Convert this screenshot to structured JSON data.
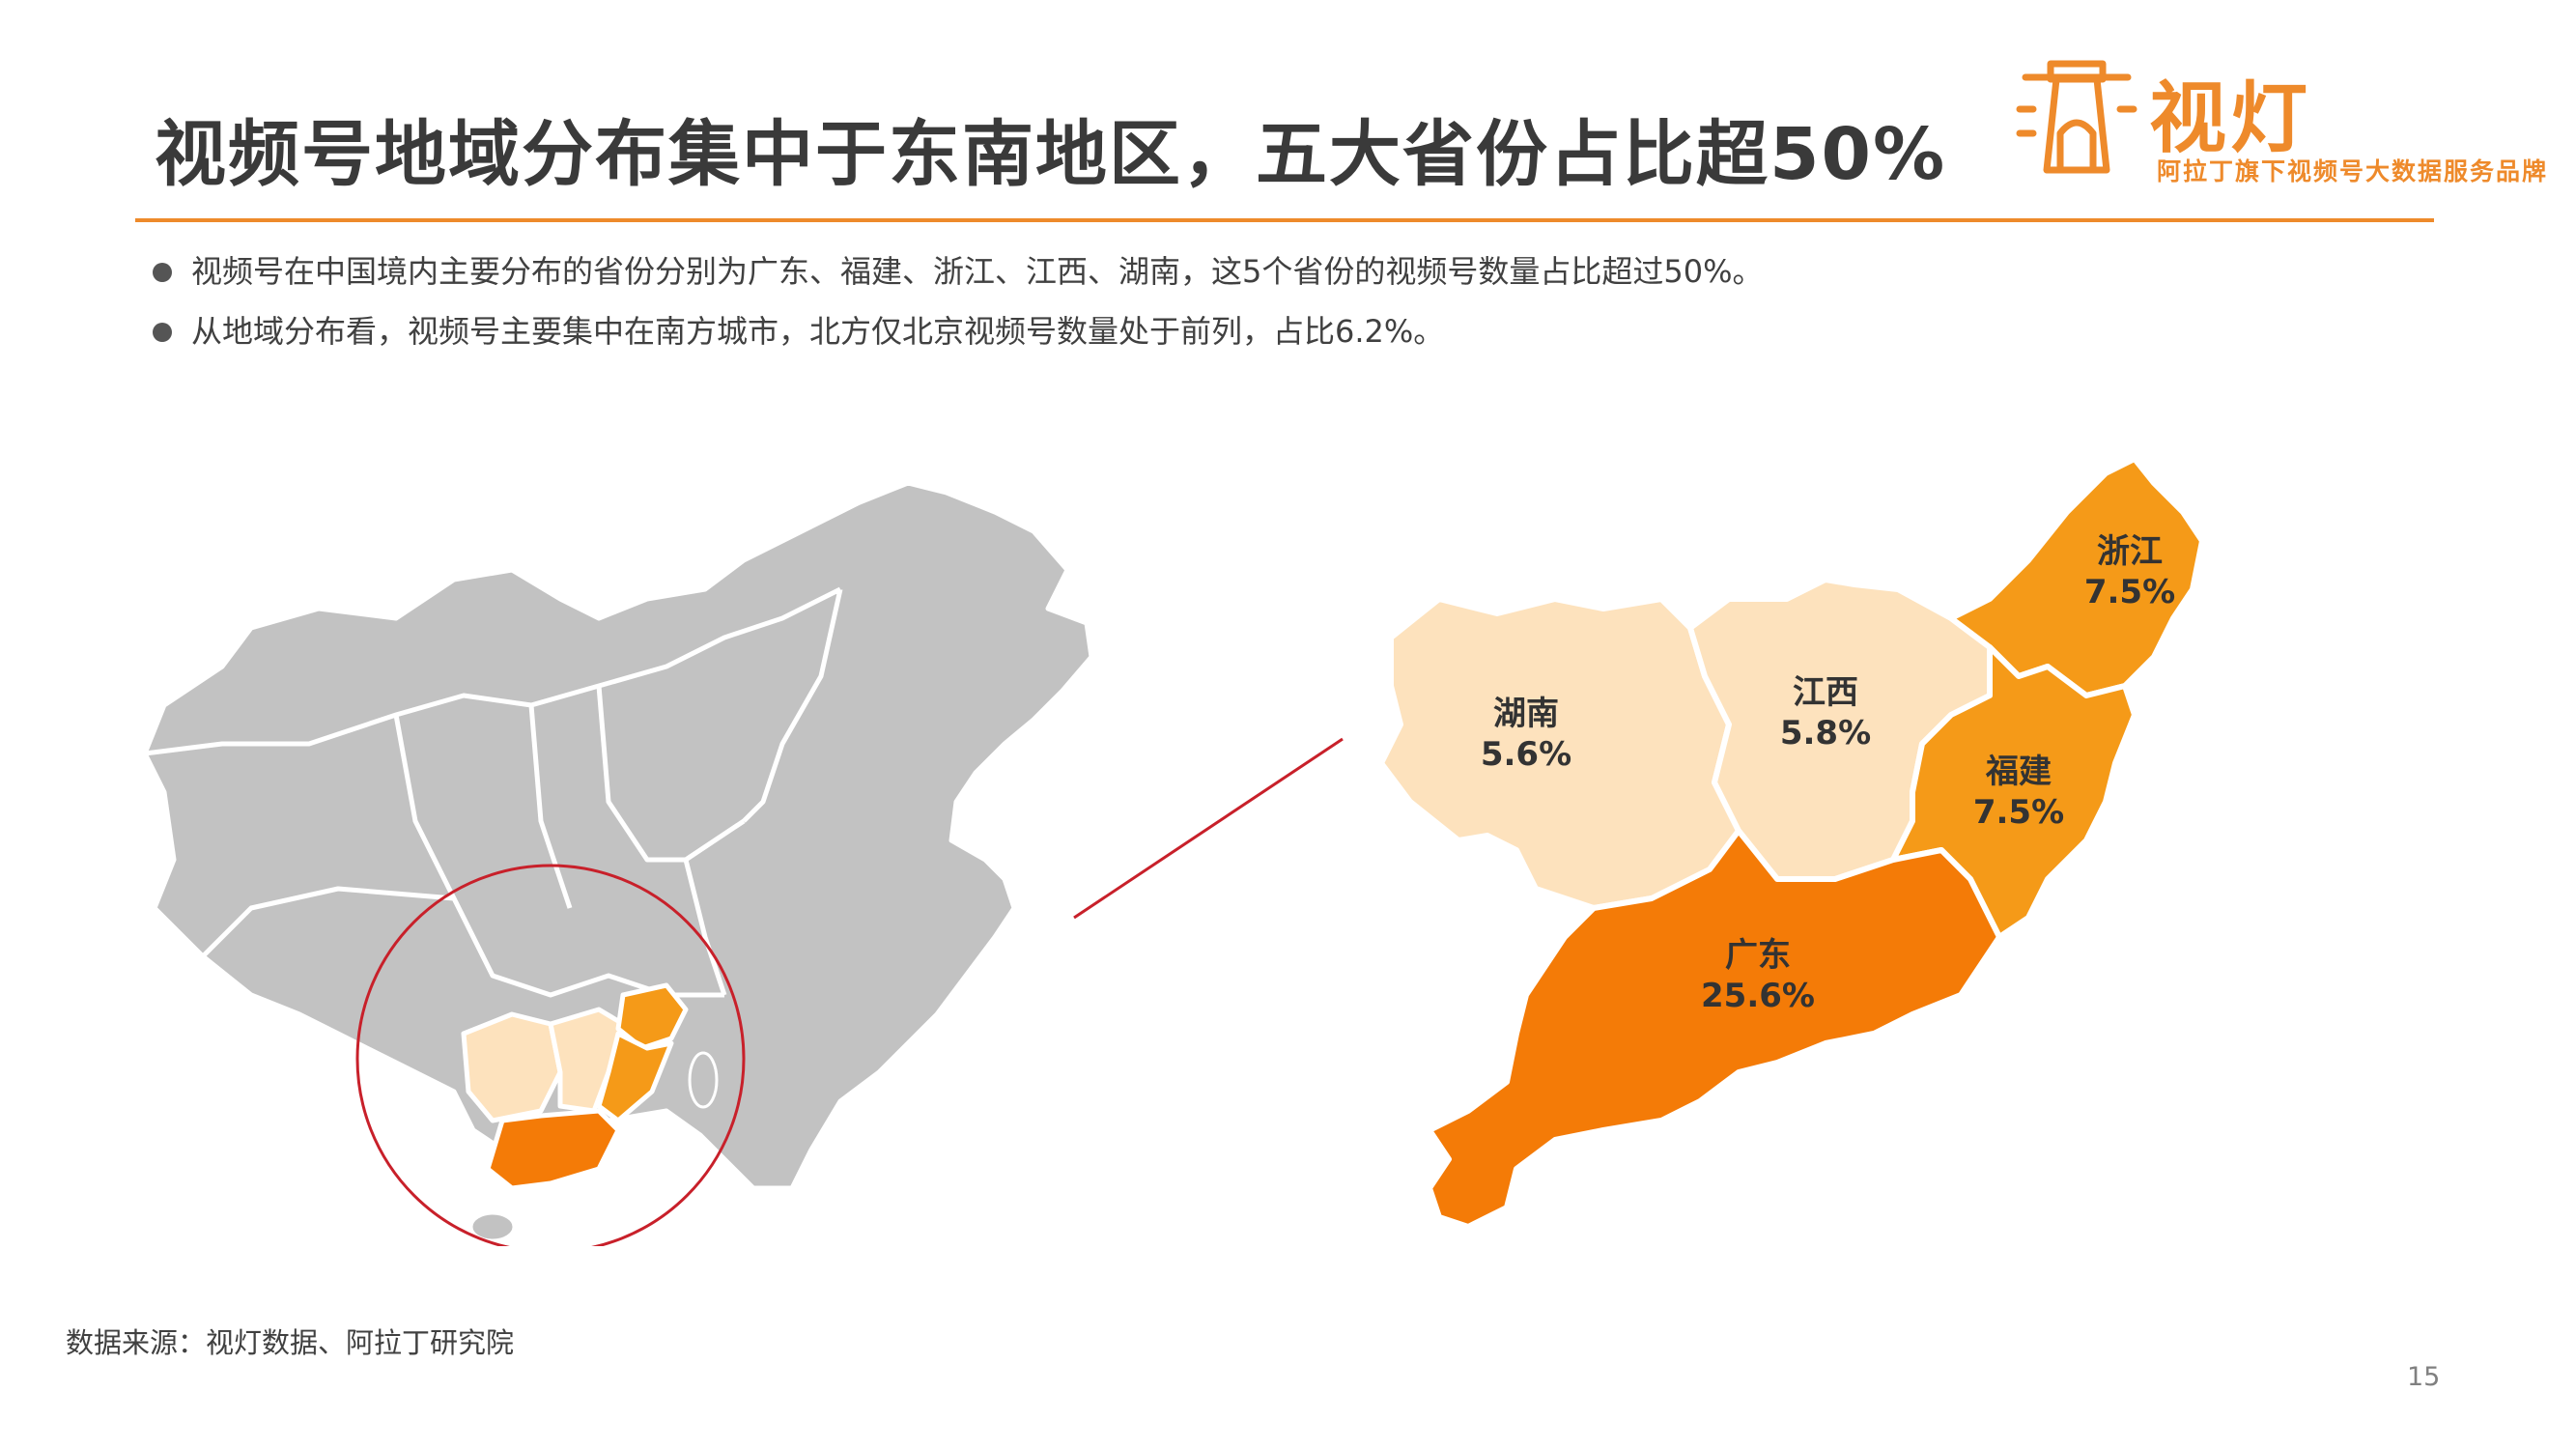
{
  "title": "视频号地域分布集中于东南地区，五大省份占比超50%",
  "logo": {
    "name": "视灯",
    "tagline": "阿拉丁旗下视频号大数据服务品牌",
    "brand_color": "#ee8a2b"
  },
  "bullets": [
    "视频号在中国境内主要分布的省份分别为广东、福建、浙江、江西、湖南，这5个省份的视频号数量占比超过50%。",
    "从地域分布看，视频号主要集中在南方城市，北方仅北京视频号数量处于前列，占比6.2%。"
  ],
  "map": {
    "base_color": "#c2c2c2",
    "highlight_circle_color": "#c8202a",
    "provinces": [
      {
        "name": "湖南",
        "share": "5.6%",
        "color": "#fde2bd"
      },
      {
        "name": "江西",
        "share": "5.8%",
        "color": "#fde2bd"
      },
      {
        "name": "浙江",
        "share": "7.5%",
        "color": "#f59a18"
      },
      {
        "name": "福建",
        "share": "7.5%",
        "color": "#f59a18"
      },
      {
        "name": "广东",
        "share": "25.6%",
        "color": "#f47b07"
      }
    ]
  },
  "source": "数据来源：视灯数据、阿拉丁研究院",
  "page_number": "15"
}
